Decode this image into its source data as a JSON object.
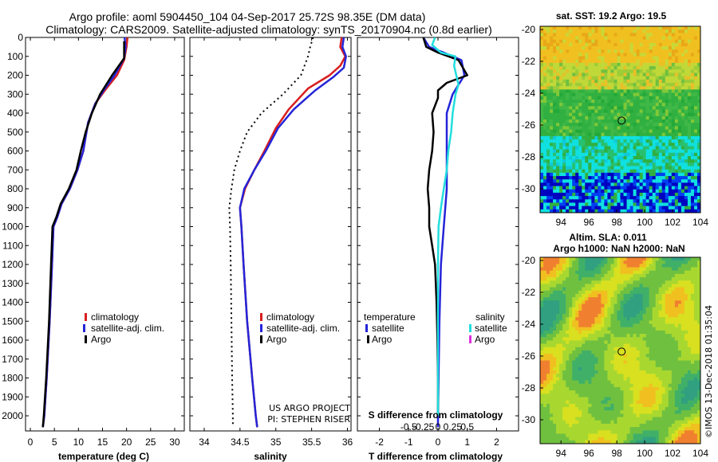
{
  "titles": {
    "line1": "Argo profile: aoml 5904450_104 04-Sep-2017 25.72S 98.35E (DM data)",
    "line2": "Climatology: CARS2009. Satellite-adjusted climatology: synTS_20170904.nc (0.8d earlier)"
  },
  "colors": {
    "climatology": "#d81e1e",
    "satellite": "#2424d8",
    "argo": "#000000",
    "satellite_s": "#22dede",
    "argo_s": "#e030e0"
  },
  "chart_data": [
    {
      "id": "temperature",
      "type": "line",
      "xlabel": "temperature (deg C)",
      "xlim": [
        -1,
        32
      ],
      "xticks": [
        0,
        5,
        10,
        15,
        20,
        25,
        30
      ],
      "ylim": [
        0,
        2080
      ],
      "yticks": [
        0,
        100,
        200,
        300,
        400,
        500,
        600,
        700,
        800,
        900,
        1000,
        1100,
        1200,
        1300,
        1400,
        1500,
        1600,
        1700,
        1800,
        1900,
        2000
      ],
      "legend": [
        "climatology",
        "satellite-adj. clim.",
        "Argo"
      ],
      "series": [
        {
          "name": "climatology",
          "color_key": "climatology",
          "points": [
            [
              20.2,
              0
            ],
            [
              20.0,
              50
            ],
            [
              19.5,
              120
            ],
            [
              18.0,
              200
            ],
            [
              15.5,
              280
            ],
            [
              13.5,
              350
            ],
            [
              12.0,
              450
            ],
            [
              11.0,
              600
            ],
            [
              9.8,
              700
            ],
            [
              8.2,
              800
            ],
            [
              6.5,
              880
            ],
            [
              5.6,
              950
            ],
            [
              4.8,
              1000
            ],
            [
              4.5,
              1200
            ],
            [
              4.0,
              1500
            ],
            [
              3.4,
              1800
            ],
            [
              2.9,
              2000
            ],
            [
              2.6,
              2060
            ]
          ]
        },
        {
          "name": "satellite-adj. clim.",
          "color_key": "satellite",
          "points": [
            [
              19.6,
              0
            ],
            [
              19.8,
              50
            ],
            [
              19.5,
              110
            ],
            [
              17.5,
              200
            ],
            [
              15.5,
              270
            ],
            [
              13.5,
              350
            ],
            [
              12.0,
              450
            ],
            [
              11.0,
              600
            ],
            [
              9.8,
              700
            ],
            [
              8.2,
              800
            ],
            [
              6.5,
              880
            ],
            [
              5.6,
              950
            ],
            [
              4.8,
              1000
            ],
            [
              4.5,
              1200
            ],
            [
              4.0,
              1500
            ],
            [
              3.4,
              1800
            ],
            [
              2.9,
              2000
            ],
            [
              2.6,
              2060
            ]
          ]
        },
        {
          "name": "Argo",
          "color_key": "argo",
          "points": [
            [
              19.5,
              20
            ],
            [
              19.5,
              110
            ],
            [
              17.0,
              200
            ],
            [
              14.5,
              300
            ],
            [
              12.8,
              400
            ],
            [
              11.5,
              500
            ],
            [
              10.5,
              600
            ],
            [
              9.6,
              700
            ],
            [
              8.0,
              800
            ],
            [
              6.3,
              880
            ],
            [
              5.4,
              950
            ],
            [
              4.6,
              1000
            ],
            [
              4.3,
              1200
            ],
            [
              3.9,
              1500
            ],
            [
              3.3,
              1800
            ],
            [
              2.8,
              2000
            ],
            [
              2.6,
              2060
            ]
          ]
        }
      ]
    },
    {
      "id": "salinity",
      "type": "line",
      "xlabel": "salinity",
      "xlim": [
        33.8,
        36.05
      ],
      "xticks": [
        34,
        34.5,
        35,
        35.5,
        36
      ],
      "xticklabels": [
        "34",
        "34.5",
        "35",
        "35.5",
        "36"
      ],
      "ylim": [
        0,
        2080
      ],
      "legend": [
        "climatology",
        "satellite-adj. clim.",
        "Argo"
      ],
      "credits": [
        "US ARGO PROJECT",
        "PI: STEPHEN RISER"
      ],
      "series": [
        {
          "name": "climatology",
          "color_key": "climatology",
          "points": [
            [
              35.92,
              0
            ],
            [
              35.9,
              50
            ],
            [
              35.97,
              100
            ],
            [
              35.9,
              150
            ],
            [
              35.75,
              200
            ],
            [
              35.45,
              270
            ],
            [
              35.18,
              380
            ],
            [
              35.0,
              480
            ],
            [
              34.84,
              600
            ],
            [
              34.7,
              700
            ],
            [
              34.57,
              800
            ],
            [
              34.5,
              900
            ],
            [
              34.52,
              1000
            ],
            [
              34.55,
              1200
            ],
            [
              34.6,
              1500
            ],
            [
              34.67,
              1800
            ],
            [
              34.72,
              2000
            ],
            [
              34.74,
              2060
            ]
          ]
        },
        {
          "name": "satellite-adj. clim.",
          "color_key": "satellite",
          "points": [
            [
              35.95,
              0
            ],
            [
              35.93,
              50
            ],
            [
              35.98,
              100
            ],
            [
              35.95,
              160
            ],
            [
              35.8,
              210
            ],
            [
              35.55,
              280
            ],
            [
              35.25,
              380
            ],
            [
              35.03,
              480
            ],
            [
              34.86,
              600
            ],
            [
              34.7,
              700
            ],
            [
              34.56,
              800
            ],
            [
              34.5,
              900
            ],
            [
              34.52,
              1000
            ],
            [
              34.55,
              1200
            ],
            [
              34.6,
              1500
            ],
            [
              34.67,
              1800
            ],
            [
              34.72,
              2000
            ],
            [
              34.74,
              2060
            ]
          ]
        },
        {
          "name": "Argo",
          "color_key": "argo",
          "dotted": true,
          "points": [
            [
              35.52,
              0
            ],
            [
              35.48,
              50
            ],
            [
              35.45,
              100
            ],
            [
              35.35,
              200
            ],
            [
              35.1,
              300
            ],
            [
              34.8,
              400
            ],
            [
              34.6,
              500
            ],
            [
              34.5,
              600
            ],
            [
              34.42,
              700
            ],
            [
              34.38,
              800
            ],
            [
              34.35,
              900
            ],
            [
              34.36,
              1000
            ],
            [
              34.37,
              1200
            ],
            [
              34.38,
              1500
            ],
            [
              34.39,
              1800
            ],
            [
              34.4,
              2000
            ],
            [
              34.4,
              2050
            ]
          ]
        }
      ]
    },
    {
      "id": "difference",
      "type": "line",
      "xlabel": "T difference from climatology",
      "xlabel_top": "S difference from climatology",
      "xlim": [
        -2.75,
        2.75
      ],
      "xticks": [
        -2,
        -1,
        0,
        1,
        2
      ],
      "sticks": [
        -0.5,
        -0.25,
        0,
        0.25,
        0.5
      ],
      "sticklabels": [
        "-0.5",
        "-0.25",
        "0",
        "0.25",
        "0.5"
      ],
      "ylim": [
        0,
        2080
      ],
      "legend_left_title": "temperature",
      "legend_right_title": "salinity",
      "legend_left": [
        "satellite",
        "Argo"
      ],
      "legend_right": [
        "satellite",
        "Argo"
      ],
      "series": [
        {
          "name": "T satellite",
          "color_key": "satellite",
          "points": [
            [
              -0.5,
              0
            ],
            [
              -0.3,
              50
            ],
            [
              0.2,
              80
            ],
            [
              0.8,
              120
            ],
            [
              0.9,
              200
            ],
            [
              0.5,
              300
            ],
            [
              0.3,
              400
            ],
            [
              0.3,
              600
            ],
            [
              0.3,
              800
            ],
            [
              0.2,
              1000
            ],
            [
              0.1,
              1200
            ],
            [
              0.05,
              1500
            ],
            [
              0.02,
              1800
            ],
            [
              0,
              2000
            ],
            [
              0,
              2060
            ]
          ]
        },
        {
          "name": "T Argo",
          "color_key": "argo",
          "points": [
            [
              -0.5,
              0
            ],
            [
              -0.4,
              50
            ],
            [
              0,
              80
            ],
            [
              0.7,
              120
            ],
            [
              1.0,
              200
            ],
            [
              0.3,
              240
            ],
            [
              0,
              280
            ],
            [
              0,
              320
            ],
            [
              -0.2,
              400
            ],
            [
              -0.15,
              500
            ],
            [
              -0.2,
              600
            ],
            [
              -0.3,
              700
            ],
            [
              -0.35,
              800
            ],
            [
              -0.3,
              900
            ],
            [
              -0.3,
              1000
            ],
            [
              -0.2,
              1100
            ],
            [
              -0.1,
              1200
            ],
            [
              -0.05,
              1400
            ],
            [
              -0.02,
              1600
            ],
            [
              0,
              1800
            ],
            [
              0,
              2000
            ]
          ]
        },
        {
          "name": "S satellite",
          "color_key": "satellite_s",
          "points": [
            [
              -0.1,
              0
            ],
            [
              -0.2,
              40
            ],
            [
              0.1,
              80
            ],
            [
              0.6,
              100
            ],
            [
              0.55,
              150
            ],
            [
              0.7,
              250
            ],
            [
              0.6,
              300
            ],
            [
              0.5,
              400
            ],
            [
              0.45,
              500
            ],
            [
              0.35,
              600
            ],
            [
              0.3,
              700
            ],
            [
              0.2,
              800
            ],
            [
              0.1,
              900
            ],
            [
              0.02,
              1000
            ],
            [
              0,
              1200
            ],
            [
              0,
              1500
            ],
            [
              0,
              1800
            ],
            [
              0,
              2000
            ]
          ]
        }
      ]
    }
  ],
  "maps": [
    {
      "id": "sst-map",
      "title": "sat. SST: 19.2 Argo: 19.5",
      "xticks": [
        94,
        96,
        98,
        100,
        102,
        104
      ],
      "yticks": [
        -20,
        -22,
        -24,
        -26,
        -28,
        -30
      ],
      "xlim": [
        92.5,
        104
      ],
      "ylim": [
        -31.5,
        -19.8
      ],
      "marker": [
        98.35,
        -25.72
      ]
    },
    {
      "id": "sla-map",
      "title_lines": [
        "Altim. SLA: 0.011",
        "Argo h1000: NaN h2000: NaN"
      ],
      "xticks": [
        94,
        96,
        98,
        100,
        102,
        104
      ],
      "yticks": [
        -20,
        -22,
        -24,
        -26,
        -28,
        -30
      ],
      "xlim": [
        92.5,
        104
      ],
      "ylim": [
        -31.5,
        -19.8
      ],
      "marker": [
        98.35,
        -25.72
      ]
    }
  ],
  "watermark": "©IMOS 13-Dec-2018 01:35:04"
}
